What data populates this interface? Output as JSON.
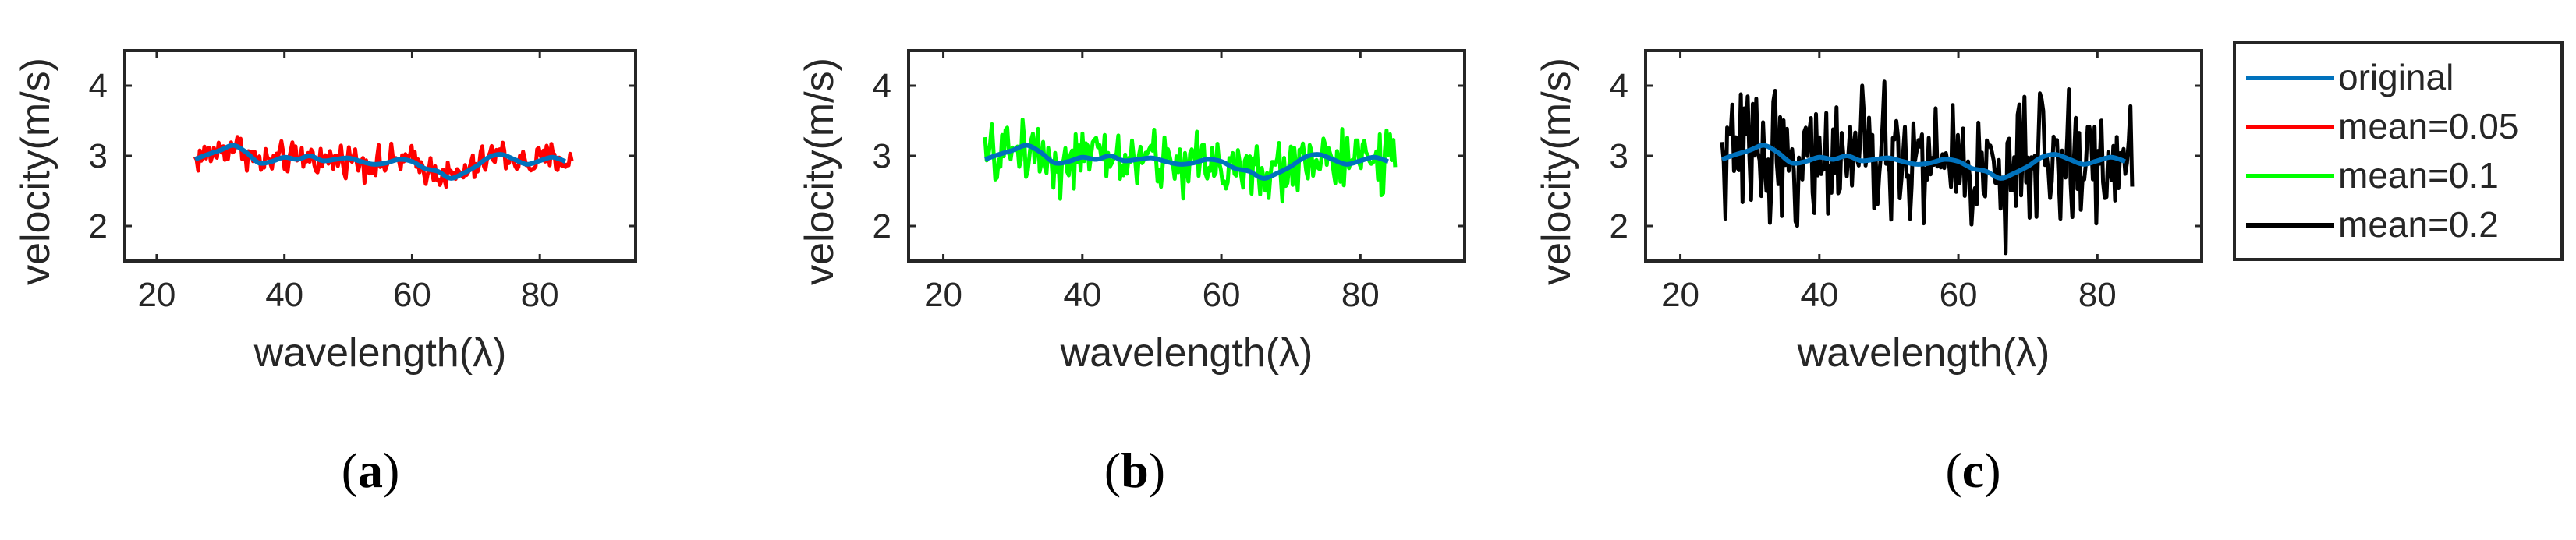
{
  "figure": {
    "panel_labels": [
      "(a)",
      "(b)",
      "(c)"
    ]
  },
  "chart_data": [
    {
      "type": "line",
      "panel": "(a)",
      "xlabel": "wavelength(λ)",
      "ylabel": "velocity(m/s)",
      "xlim": [
        15,
        95
      ],
      "ylim": [
        1.5,
        4.5
      ],
      "xticks": [
        20,
        40,
        60,
        80
      ],
      "yticks": [
        2,
        3,
        4
      ],
      "grid": false,
      "series": [
        {
          "name": "original",
          "color": "#0072BD",
          "x": [
            26,
            28,
            30,
            32,
            34,
            36,
            38,
            40,
            42,
            44,
            46,
            48,
            50,
            52,
            54,
            56,
            58,
            60,
            62,
            64,
            66,
            68,
            70,
            72,
            74,
            76,
            78,
            80,
            82,
            84
          ],
          "y": [
            2.95,
            3.02,
            3.08,
            3.15,
            3.05,
            2.9,
            2.92,
            2.98,
            2.95,
            3.0,
            2.93,
            2.95,
            2.97,
            2.92,
            2.88,
            2.9,
            2.95,
            2.92,
            2.82,
            2.78,
            2.68,
            2.75,
            2.85,
            2.98,
            3.02,
            2.95,
            2.88,
            2.93,
            2.98,
            2.92
          ]
        },
        {
          "name": "mean=0.05",
          "color": "#FF0000",
          "noise": 0.05,
          "x_range": [
            26,
            85
          ]
        }
      ]
    },
    {
      "type": "line",
      "panel": "(b)",
      "xlabel": "wavelength(λ)",
      "ylabel": "velocity(m/s)",
      "xlim": [
        15,
        95
      ],
      "ylim": [
        1.5,
        4.5
      ],
      "xticks": [
        20,
        40,
        60,
        80
      ],
      "yticks": [
        2,
        3,
        4
      ],
      "grid": false,
      "series": [
        {
          "name": "original",
          "color": "#0072BD",
          "same_as": "(a)"
        },
        {
          "name": "mean=0.1",
          "color": "#00FF00",
          "noise": 0.1,
          "x_range": [
            26,
            85
          ]
        }
      ]
    },
    {
      "type": "line",
      "panel": "(c)",
      "xlabel": "wavelength(λ)",
      "ylabel": "velocity(m/s)",
      "xlim": [
        15,
        95
      ],
      "ylim": [
        1.5,
        4.5
      ],
      "xticks": [
        20,
        40,
        60,
        80
      ],
      "yticks": [
        2,
        3,
        4
      ],
      "grid": false,
      "series": [
        {
          "name": "original",
          "color": "#0072BD",
          "same_as": "(a)"
        },
        {
          "name": "mean=0.2",
          "color": "#000000",
          "noise": 0.2,
          "x_range": [
            26,
            85
          ]
        }
      ]
    }
  ],
  "legend": {
    "placement": "right",
    "entries": [
      {
        "label": "original",
        "color": "#0072BD"
      },
      {
        "label": "mean=0.05",
        "color": "#FF0000"
      },
      {
        "label": "mean=0.1",
        "color": "#00FF00"
      },
      {
        "label": "mean=0.2",
        "color": "#000000"
      }
    ]
  }
}
